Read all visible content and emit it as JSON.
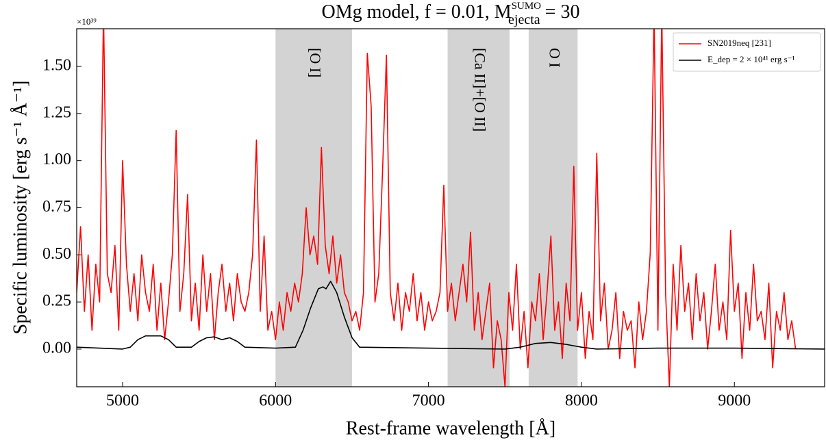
{
  "chart_data": {
    "type": "line",
    "title": "OMg model, f = 0.01, M",
    "title_subscript": "ejecta",
    "title_superscript": "SUMO",
    "title_end": " = 30",
    "y_offset_label": "×10³⁹",
    "xlabel": "Rest-frame wavelength [Å]",
    "ylabel": "Specific luminosity [erg s⁻¹ Å⁻¹]",
    "xlim": [
      4700,
      9590
    ],
    "ylim": [
      -0.2,
      1.7
    ],
    "xticks": [
      5000,
      6000,
      7000,
      8000,
      9000
    ],
    "yticks": [
      {
        "value": 0,
        "label": "0.00"
      },
      {
        "value": 0.25,
        "label": "0.25"
      },
      {
        "value": 0.5,
        "label": "0.50"
      },
      {
        "value": 0.75,
        "label": "0.75"
      },
      {
        "value": 1,
        "label": "1.00"
      },
      {
        "value": 1.25,
        "label": "1.25"
      },
      {
        "value": 1.5,
        "label": "1.50"
      }
    ],
    "legend": "upper right",
    "regions": [
      {
        "label": "[O I]",
        "range": [
          6000,
          6500
        ]
      },
      {
        "label": "[Ca II]+[O II]",
        "range": [
          7125,
          7530
        ]
      },
      {
        "label": "O I",
        "range": [
          7655,
          7975
        ]
      }
    ],
    "series": [
      {
        "name": "SN2019neq [231]",
        "color": "#ff0000",
        "x": [
          4700,
          4725,
          4750,
          4775,
          4800,
          4825,
          4850,
          4875,
          4900,
          4925,
          4950,
          4975,
          5000,
          5025,
          5050,
          5075,
          5100,
          5125,
          5150,
          5175,
          5200,
          5225,
          5250,
          5275,
          5300,
          5325,
          5350,
          5375,
          5400,
          5425,
          5450,
          5475,
          5500,
          5525,
          5550,
          5575,
          5600,
          5625,
          5650,
          5675,
          5700,
          5725,
          5750,
          5775,
          5800,
          5825,
          5850,
          5875,
          5900,
          5925,
          5950,
          5975,
          6000,
          6025,
          6050,
          6075,
          6100,
          6125,
          6150,
          6175,
          6200,
          6225,
          6250,
          6275,
          6300,
          6325,
          6350,
          6375,
          6400,
          6425,
          6450,
          6475,
          6500,
          6525,
          6550,
          6575,
          6600,
          6625,
          6650,
          6675,
          6700,
          6725,
          6750,
          6775,
          6800,
          6825,
          6850,
          6875,
          6900,
          6925,
          6950,
          6975,
          7000,
          7025,
          7050,
          7075,
          7100,
          7125,
          7150,
          7175,
          7200,
          7225,
          7250,
          7275,
          7300,
          7325,
          7350,
          7375,
          7400,
          7425,
          7450,
          7475,
          7500,
          7525,
          7550,
          7575,
          7600,
          7625,
          7650,
          7675,
          7700,
          7725,
          7750,
          7775,
          7800,
          7825,
          7850,
          7875,
          7900,
          7925,
          7950,
          7975,
          8000,
          8025,
          8050,
          8075,
          8100,
          8125,
          8150,
          8175,
          8200,
          8225,
          8250,
          8275,
          8300,
          8325,
          8350,
          8375,
          8400,
          8425,
          8450,
          8475,
          8500,
          8525,
          8550,
          8575,
          8600,
          8625,
          8650,
          8675,
          8700,
          8725,
          8750,
          8775,
          8800,
          8825,
          8850,
          8875,
          8900,
          8925,
          8950,
          8975,
          9000,
          9025,
          9050,
          9075,
          9100,
          9125,
          9150,
          9175,
          9200,
          9225,
          9250,
          9275,
          9300,
          9325,
          9350,
          9375,
          9400
        ],
        "values": [
          0.3,
          0.65,
          0.2,
          0.5,
          0.1,
          0.45,
          0.25,
          1.8,
          0.4,
          0.3,
          0.55,
          0.1,
          1.0,
          0.45,
          0.2,
          0.4,
          0.15,
          0.5,
          0.3,
          0.2,
          0.45,
          0.1,
          0.35,
          0.05,
          0.25,
          0.5,
          1.16,
          0.2,
          0.4,
          0.82,
          0.15,
          0.35,
          0.1,
          0.5,
          0.2,
          0.4,
          0.05,
          0.3,
          0.45,
          0.2,
          0.35,
          0.15,
          0.4,
          0.25,
          0.2,
          0.3,
          0.5,
          1.11,
          0.2,
          0.6,
          0.1,
          0.2,
          0.05,
          0.25,
          0.1,
          0.3,
          0.2,
          0.35,
          0.25,
          0.4,
          0.75,
          0.5,
          0.6,
          0.45,
          1.07,
          0.55,
          0.4,
          0.6,
          0.35,
          0.5,
          0.3,
          0.25,
          0.15,
          0.2,
          0.1,
          0.3,
          1.57,
          1.29,
          0.25,
          0.4,
          0.95,
          1.56,
          0.3,
          0.15,
          0.35,
          0.1,
          0.3,
          0.2,
          0.4,
          0.15,
          0.3,
          0.1,
          0.25,
          0.15,
          0.2,
          0.3,
          0.87,
          0.2,
          0.35,
          0.15,
          0.3,
          0.45,
          0.25,
          0.62,
          0.1,
          0.3,
          0.05,
          0.2,
          0.35,
          -0.1,
          0.15,
          0.05,
          -0.2,
          0.3,
          0.1,
          0.45,
          0.0,
          0.2,
          -0.1,
          0.25,
          0.15,
          0.4,
          0.05,
          0.3,
          0.6,
          0.1,
          0.25,
          -0.05,
          0.35,
          0.15,
          0.97,
          0.1,
          0.3,
          -0.05,
          0.2,
          0.05,
          1.04,
          0.15,
          0.35,
          0.0,
          0.1,
          0.3,
          -0.05,
          0.2,
          0.1,
          0.15,
          -0.1,
          0.25,
          0.05,
          0.2,
          0.51,
          1.8,
          0.1,
          1.8,
          0.3,
          -0.2,
          0.45,
          0.1,
          0.55,
          0.2,
          0.35,
          0.05,
          0.4,
          0.15,
          0.3,
          0.0,
          0.2,
          0.45,
          0.1,
          0.25,
          0.05,
          0.63,
          0.2,
          0.35,
          -0.05,
          0.3,
          0.1,
          0.45,
          0.15,
          0.2,
          0.05,
          0.35,
          -0.1,
          0.2,
          0.1,
          0.3,
          0.05,
          0.15,
          0.0
        ]
      },
      {
        "name": "E_dep = 2 × 10⁴¹ erg s⁻¹",
        "color": "#000000",
        "x": [
          4700,
          5000,
          5050,
          5100,
          5150,
          5250,
          5300,
          5350,
          5450,
          5500,
          5550,
          5600,
          5650,
          5700,
          5750,
          5800,
          6000,
          6130,
          6180,
          6230,
          6280,
          6310,
          6330,
          6360,
          6400,
          6450,
          6500,
          6550,
          7000,
          7500,
          7600,
          7700,
          7800,
          7900,
          8000,
          8100,
          8500,
          9000,
          9590
        ],
        "values": [
          0.01,
          0.0,
          0.01,
          0.05,
          0.07,
          0.07,
          0.05,
          0.01,
          0.01,
          0.04,
          0.06,
          0.065,
          0.05,
          0.06,
          0.04,
          0.01,
          0.005,
          0.01,
          0.1,
          0.22,
          0.32,
          0.33,
          0.32,
          0.36,
          0.3,
          0.17,
          0.06,
          0.01,
          0.005,
          0.0,
          0.01,
          0.03,
          0.035,
          0.025,
          0.01,
          0.0,
          0.005,
          0.005,
          0.0
        ]
      }
    ]
  }
}
